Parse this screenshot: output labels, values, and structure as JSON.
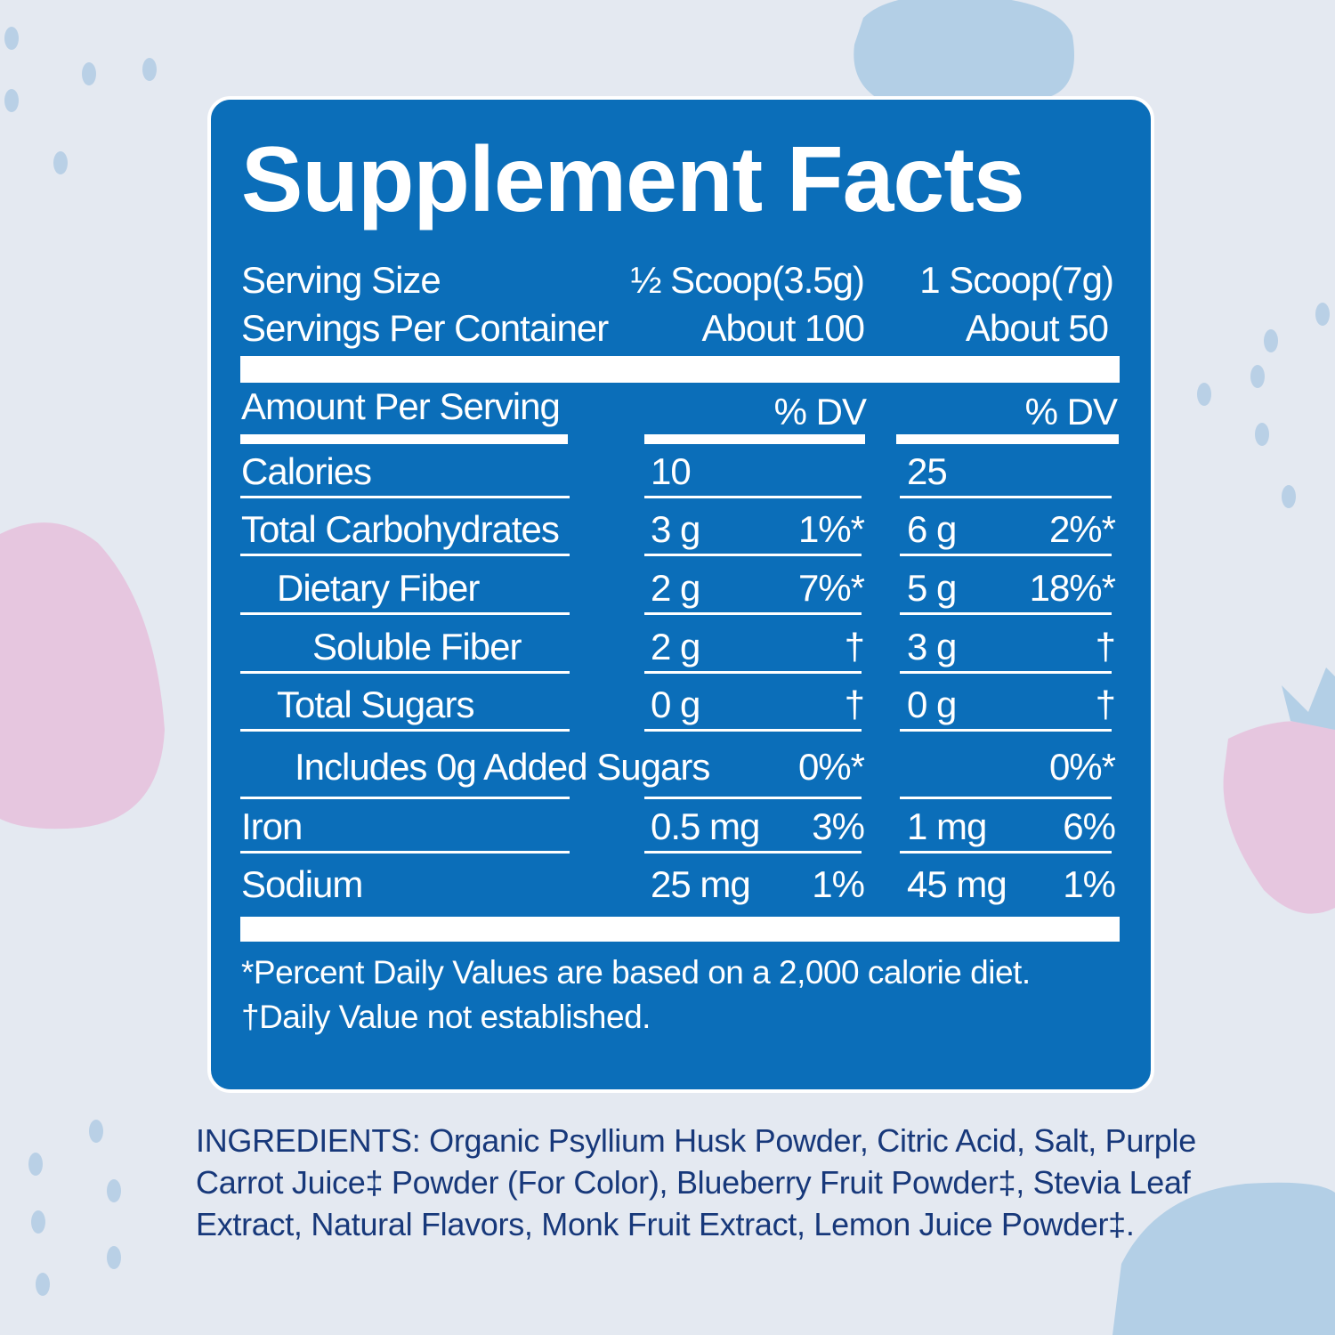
{
  "title": "Supplement Facts",
  "serving": {
    "size_label": "Serving Size",
    "size_col1": "½ Scoop(3.5g)",
    "size_col2": "1 Scoop(7g)",
    "per_container_label": "Servings Per Container",
    "per_container_col1": "About 100",
    "per_container_col2": "About 50"
  },
  "header": {
    "amount_label": "Amount Per Serving",
    "dv_col1": "% DV",
    "dv_col2": "% DV"
  },
  "rows": [
    {
      "label": "Calories",
      "indent": 0,
      "a1": "10",
      "d1": "",
      "a2": "25",
      "d2": ""
    },
    {
      "label": "Total Carbohydrates",
      "indent": 0,
      "a1": "3 g",
      "d1": "1%*",
      "a2": "6 g",
      "d2": "2%*"
    },
    {
      "label": "Dietary Fiber",
      "indent": 1,
      "a1": "2 g",
      "d1": "7%*",
      "a2": "5 g",
      "d2": "18%*"
    },
    {
      "label": "Soluble Fiber",
      "indent": 2,
      "a1": "2 g",
      "d1": "†",
      "a2": "3 g",
      "d2": "†"
    },
    {
      "label": "Total Sugars",
      "indent": 1,
      "a1": "0 g",
      "d1": "†",
      "a2": "0 g",
      "d2": "†"
    },
    {
      "label": "Includes 0g Added Sugars",
      "indent": 1.5,
      "a1": "",
      "d1": "0%*",
      "a2": "",
      "d2": "0%*"
    },
    {
      "label": "Iron",
      "indent": 0,
      "a1": "0.5 mg",
      "d1": "3%",
      "a2": "1 mg",
      "d2": "6%"
    },
    {
      "label": "Sodium",
      "indent": 0,
      "a1": "25 mg",
      "d1": "1%",
      "a2": "45 mg",
      "d2": "1%"
    }
  ],
  "footnotes": {
    "dv_note": "*Percent Daily Values are based on a 2,000 calorie diet.",
    "dagger_note": "†Daily Value not established."
  },
  "ingredients": "INGREDIENTS: Organic Psyllium Husk Powder, Citric Acid, Salt, Purple Carrot Juice‡ Powder (For Color), Blueberry Fruit Powder‡, Stevia Leaf Extract, Natural Flavors, Monk Fruit Extract, Lemon Juice Powder‡.",
  "colors": {
    "panel": "#0b6eb9",
    "background": "#e4e9f1",
    "ingredients_text": "#17387a",
    "strawberry": "#e6c6df",
    "blueberry": "#b3cfe6"
  }
}
